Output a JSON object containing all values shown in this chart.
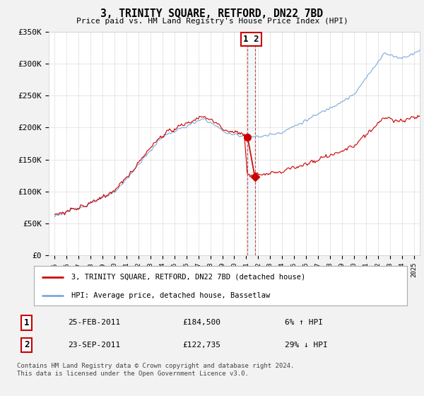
{
  "title": "3, TRINITY SQUARE, RETFORD, DN22 7BD",
  "subtitle": "Price paid vs. HM Land Registry's House Price Index (HPI)",
  "ylabel_ticks": [
    "£0",
    "£50K",
    "£100K",
    "£150K",
    "£200K",
    "£250K",
    "£300K",
    "£350K"
  ],
  "ylim": [
    0,
    350000
  ],
  "yticks": [
    0,
    50000,
    100000,
    150000,
    200000,
    250000,
    300000,
    350000
  ],
  "xlim_start": 1994.5,
  "xlim_end": 2025.5,
  "sale1_date": 2011.12,
  "sale1_price": 184500,
  "sale2_date": 2011.72,
  "sale2_price": 122735,
  "legend_line1": "3, TRINITY SQUARE, RETFORD, DN22 7BD (detached house)",
  "legend_line2": "HPI: Average price, detached house, Bassetlaw",
  "footer": "Contains HM Land Registry data © Crown copyright and database right 2024.\nThis data is licensed under the Open Government Licence v3.0.",
  "line_color_red": "#cc0000",
  "line_color_blue": "#7aaadd",
  "background_color": "#f2f2f2",
  "plot_bg_color": "#ffffff",
  "grid_color": "#dddddd"
}
